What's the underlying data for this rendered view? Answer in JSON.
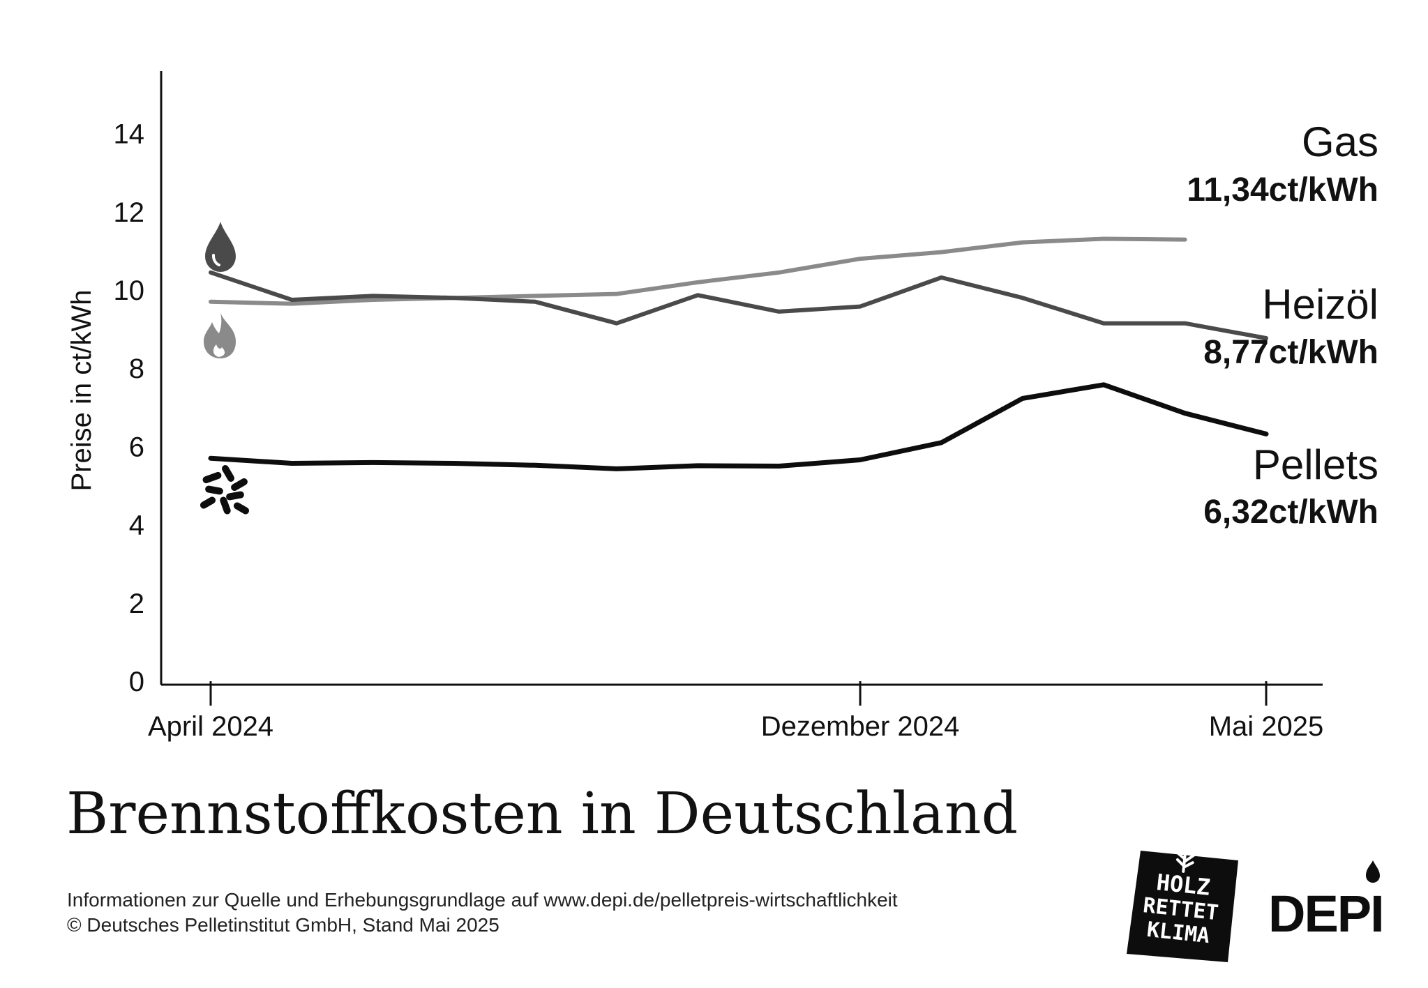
{
  "chart_data": {
    "type": "line",
    "title": "Brennstoffkosten in Deutschland",
    "ylabel": "Preise in ct/kWh",
    "ylim": [
      0,
      15
    ],
    "yticks": [
      0,
      2,
      4,
      6,
      8,
      10,
      12,
      14
    ],
    "x": [
      "2024-04",
      "2024-05",
      "2024-06",
      "2024-07",
      "2024-08",
      "2024-09",
      "2024-10",
      "2024-11",
      "2024-12",
      "2025-01",
      "2025-02",
      "2025-03",
      "2025-04",
      "2025-05"
    ],
    "xticks": [
      {
        "x": "2024-04",
        "label": "April 2024"
      },
      {
        "x": "2024-12",
        "label": "Dezember 2024"
      },
      {
        "x": "2025-05",
        "label": "Mai 2025"
      }
    ],
    "grid": false,
    "series": [
      {
        "name": "Gas",
        "value_label": "11,34ct/kWh",
        "icon": "flame-icon",
        "color": "#8a8a8a",
        "values": [
          9.7,
          9.65,
          9.75,
          9.8,
          9.85,
          9.9,
          10.2,
          10.45,
          10.8,
          10.97,
          11.22,
          11.31,
          11.29,
          null
        ]
      },
      {
        "name": "Heizöl",
        "value_label": "8,77ct/kWh",
        "icon": "oil-drop-icon",
        "color": "#4a4a4a",
        "values": [
          10.45,
          9.75,
          9.85,
          9.8,
          9.7,
          9.15,
          9.87,
          9.45,
          9.58,
          10.32,
          9.8,
          9.15,
          9.15,
          8.77
        ]
      },
      {
        "name": "Pellets",
        "value_label": "6,32ct/kWh",
        "icon": "pellets-icon",
        "color": "#0d0d0d",
        "values": [
          5.7,
          5.57,
          5.59,
          5.57,
          5.52,
          5.43,
          5.51,
          5.5,
          5.66,
          6.1,
          7.23,
          7.58,
          6.85,
          6.32
        ]
      }
    ]
  },
  "footer": {
    "line1": "Informationen zur Quelle und Erhebungsgrundlage auf www.depi.de/pelletpreis-wirtschaftlichkeit",
    "line2": "© Deutsches Pelletinstitut GmbH, Stand Mai 2025"
  },
  "logos": {
    "holz_line1": "HOLZ",
    "holz_line2": "RETTET",
    "holz_line3": "KLIMA",
    "depi": "DEPI"
  }
}
